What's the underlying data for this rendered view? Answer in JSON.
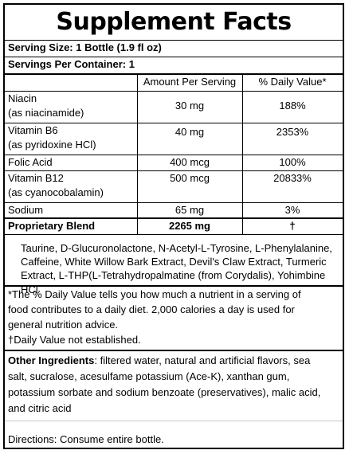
{
  "title": "Supplement Facts",
  "serving_size": "Serving Size: 1 Bottle (1.9 fl oz)",
  "servings_per_container": "Servings Per Container: 1",
  "columns": {
    "amount": "Amount Per Serving",
    "daily_value": "% Daily Value*"
  },
  "nutrients": [
    {
      "name": "Niacin",
      "sub": "(as niacinamide)",
      "amount": "30 mg",
      "dv": "188%"
    },
    {
      "name": "Vitamin B6",
      "sub": "(as pyridoxine HCl)",
      "amount": "40 mg",
      "dv": "2353%"
    },
    {
      "name": "Folic Acid",
      "sub": "",
      "amount": "400 mcg",
      "dv": "100%"
    },
    {
      "name": "Vitamin B12",
      "sub": "(as cyanocobalamin)",
      "amount": "500 mcg",
      "dv": "20833%"
    },
    {
      "name": "Sodium",
      "sub": "",
      "amount": "65 mg",
      "dv": "3%"
    }
  ],
  "blend": {
    "name": "Proprietary Blend",
    "amount": "2265 mg",
    "dv": "†",
    "ingredients_line1": "Taurine, D-Glucuronolactone, N-Acetyl-L-Tyrosine, L-Phenylalanine,",
    "ingredients_line2": "Caffeine, White Willow Bark Extract, Devil's Claw Extract, Turmeric",
    "ingredients_line3": "Extract, L-THP(L-Tetrahydropalmatine (from Corydalis), Yohimbine HCl"
  },
  "footnote": {
    "line1": "*The % Daily Value tells you how much a nutrient in a serving of",
    "line2": "food contributes to a daily diet. 2,000 calories a day is used for",
    "line3": "general nutrition advice.",
    "line4": "†Daily Value not established."
  },
  "other_ingredients": {
    "label": "Other Ingredients",
    "line1": ": filtered water, natural and artificial flavors, sea",
    "line2": "salt, sucralose, acesulfame potassium (Ace-K), xanthan gum,",
    "line3": "potassium sorbate and sodium benzoate (preservatives), malic acid,",
    "line4": "and citric acid"
  },
  "directions": "Directions: Consume entire bottle."
}
